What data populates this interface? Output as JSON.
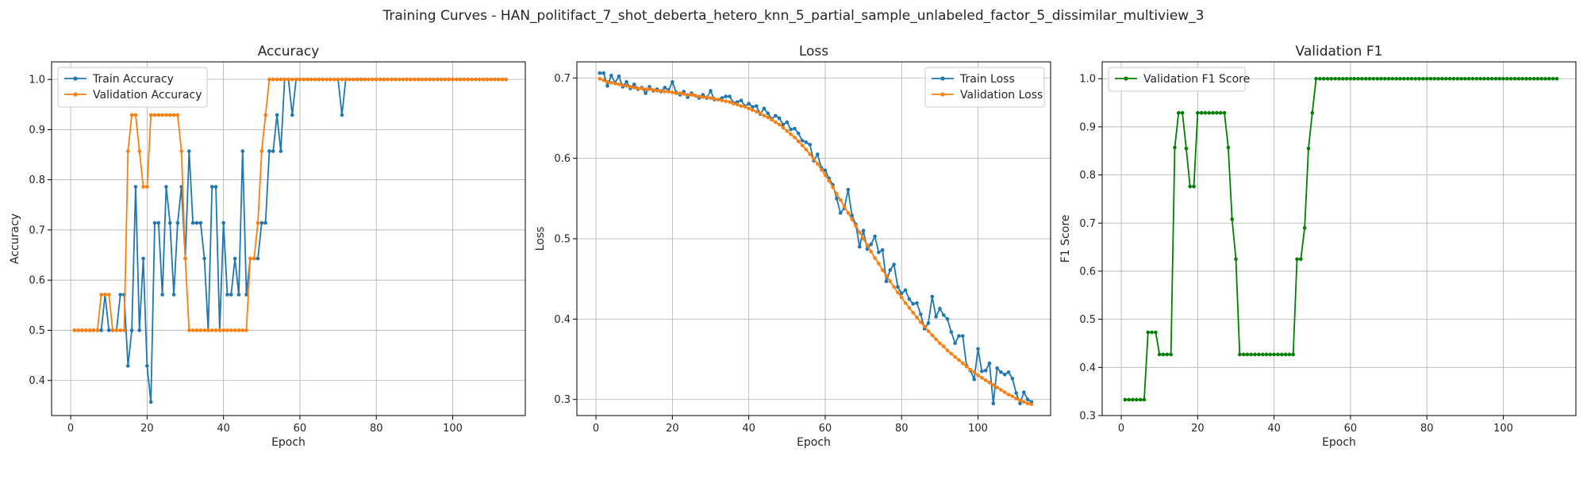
{
  "figure": {
    "suptitle": "Training Curves - HAN_politifact_7_shot_deberta_hetero_knn_5_partial_sample_unlabeled_factor_5_dissimilar_multiview_3"
  },
  "colors": {
    "blue": "#1f77b4",
    "orange": "#ff7f0e",
    "green": "#008000"
  },
  "chart_data": [
    {
      "type": "line",
      "title": "Accuracy",
      "xlabel": "Epoch",
      "ylabel": "Accuracy",
      "xlim": [
        -5,
        119
      ],
      "ylim": [
        0.33,
        1.035
      ],
      "xticks": [
        0,
        20,
        40,
        60,
        80,
        100
      ],
      "yticks": [
        0.4,
        0.5,
        0.6,
        0.7,
        0.8,
        0.9,
        1.0
      ],
      "ytick_labels": [
        "0.4",
        "0.5",
        "0.6",
        "0.7",
        "0.8",
        "0.9",
        "1.0"
      ],
      "grid": true,
      "legend": "top-left",
      "x_start": 1,
      "series": [
        {
          "name": "Train Accuracy",
          "color": "#1f77b4",
          "values": [
            0.5,
            0.5,
            0.5,
            0.5,
            0.5,
            0.5,
            0.5,
            0.5,
            0.571,
            0.5,
            0.5,
            0.5,
            0.571,
            0.571,
            0.429,
            0.5,
            0.786,
            0.5,
            0.643,
            0.429,
            0.357,
            0.714,
            0.714,
            0.571,
            0.786,
            0.714,
            0.571,
            0.714,
            0.786,
            0.643,
            0.857,
            0.714,
            0.714,
            0.714,
            0.643,
            0.5,
            0.786,
            0.786,
            0.5,
            0.714,
            0.571,
            0.571,
            0.643,
            0.571,
            0.857,
            0.571,
            0.643,
            0.643,
            0.643,
            0.714,
            0.714,
            0.857,
            0.857,
            0.929,
            0.857,
            1.0,
            1.0,
            0.929,
            1.0,
            1.0,
            1.0,
            1.0,
            1.0,
            1.0,
            1.0,
            1.0,
            1.0,
            1.0,
            1.0,
            1.0,
            0.929,
            1.0,
            1.0,
            1.0,
            1.0,
            1.0,
            1.0,
            1.0,
            1.0,
            1.0,
            1.0,
            1.0,
            1.0,
            1.0,
            1.0,
            1.0,
            1.0,
            1.0,
            1.0,
            1.0,
            1.0,
            1.0,
            1.0,
            1.0,
            1.0,
            1.0,
            1.0,
            1.0,
            1.0,
            1.0,
            1.0,
            1.0,
            1.0,
            1.0,
            1.0,
            1.0,
            1.0,
            1.0,
            1.0,
            1.0,
            1.0,
            1.0,
            1.0,
            1.0
          ]
        },
        {
          "name": "Validation Accuracy",
          "color": "#ff7f0e",
          "values": [
            0.5,
            0.5,
            0.5,
            0.5,
            0.5,
            0.5,
            0.5,
            0.571,
            0.571,
            0.571,
            0.5,
            0.5,
            0.5,
            0.5,
            0.857,
            0.929,
            0.929,
            0.857,
            0.786,
            0.786,
            0.929,
            0.929,
            0.929,
            0.929,
            0.929,
            0.929,
            0.929,
            0.929,
            0.857,
            0.643,
            0.5,
            0.5,
            0.5,
            0.5,
            0.5,
            0.5,
            0.5,
            0.5,
            0.5,
            0.5,
            0.5,
            0.5,
            0.5,
            0.5,
            0.5,
            0.5,
            0.643,
            0.643,
            0.714,
            0.857,
            0.929,
            1.0,
            1.0,
            1.0,
            1.0,
            1.0,
            1.0,
            1.0,
            1.0,
            1.0,
            1.0,
            1.0,
            1.0,
            1.0,
            1.0,
            1.0,
            1.0,
            1.0,
            1.0,
            1.0,
            1.0,
            1.0,
            1.0,
            1.0,
            1.0,
            1.0,
            1.0,
            1.0,
            1.0,
            1.0,
            1.0,
            1.0,
            1.0,
            1.0,
            1.0,
            1.0,
            1.0,
            1.0,
            1.0,
            1.0,
            1.0,
            1.0,
            1.0,
            1.0,
            1.0,
            1.0,
            1.0,
            1.0,
            1.0,
            1.0,
            1.0,
            1.0,
            1.0,
            1.0,
            1.0,
            1.0,
            1.0,
            1.0,
            1.0,
            1.0,
            1.0,
            1.0,
            1.0,
            1.0
          ]
        }
      ]
    },
    {
      "type": "line",
      "title": "Loss",
      "xlabel": "Epoch",
      "ylabel": "Loss",
      "xlim": [
        -5,
        119
      ],
      "ylim": [
        0.28,
        0.72
      ],
      "xticks": [
        0,
        20,
        40,
        60,
        80,
        100
      ],
      "yticks": [
        0.3,
        0.4,
        0.5,
        0.6,
        0.7
      ],
      "ytick_labels": [
        "0.3",
        "0.4",
        "0.5",
        "0.6",
        "0.7"
      ],
      "grid": true,
      "legend": "top-right",
      "x_start": 1,
      "series": [
        {
          "name": "Train Loss",
          "color": "#1f77b4",
          "values": [
            0.706,
            0.706,
            0.69,
            0.703,
            0.694,
            0.702,
            0.689,
            0.695,
            0.687,
            0.692,
            0.686,
            0.688,
            0.681,
            0.689,
            0.684,
            0.686,
            0.683,
            0.688,
            0.685,
            0.695,
            0.682,
            0.679,
            0.683,
            0.676,
            0.681,
            0.678,
            0.675,
            0.679,
            0.675,
            0.684,
            0.673,
            0.673,
            0.675,
            0.677,
            0.677,
            0.669,
            0.67,
            0.672,
            0.665,
            0.668,
            0.664,
            0.665,
            0.655,
            0.662,
            0.656,
            0.649,
            0.653,
            0.65,
            0.642,
            0.645,
            0.636,
            0.637,
            0.631,
            0.622,
            0.62,
            0.617,
            0.597,
            0.605,
            0.588,
            0.585,
            0.575,
            0.567,
            0.55,
            0.532,
            0.538,
            0.561,
            0.529,
            0.518,
            0.49,
            0.51,
            0.487,
            0.493,
            0.503,
            0.483,
            0.486,
            0.447,
            0.461,
            0.468,
            0.44,
            0.432,
            0.436,
            0.425,
            0.419,
            0.42,
            0.406,
            0.388,
            0.395,
            0.428,
            0.403,
            0.413,
            0.405,
            0.4,
            0.384,
            0.37,
            0.379,
            0.379,
            0.342,
            0.336,
            0.325,
            0.363,
            0.335,
            0.336,
            0.345,
            0.295,
            0.339,
            0.334,
            0.331,
            0.334,
            0.326,
            0.308,
            0.295,
            0.309,
            0.3,
            0.297
          ]
        },
        {
          "name": "Validation Loss",
          "color": "#ff7f0e",
          "values": [
            0.699,
            0.697,
            0.695,
            0.694,
            0.693,
            0.692,
            0.691,
            0.69,
            0.689,
            0.688,
            0.687,
            0.687,
            0.686,
            0.686,
            0.685,
            0.684,
            0.684,
            0.683,
            0.683,
            0.682,
            0.681,
            0.681,
            0.68,
            0.679,
            0.679,
            0.678,
            0.677,
            0.676,
            0.676,
            0.675,
            0.674,
            0.673,
            0.672,
            0.671,
            0.67,
            0.668,
            0.667,
            0.665,
            0.664,
            0.662,
            0.66,
            0.658,
            0.656,
            0.653,
            0.651,
            0.648,
            0.645,
            0.642,
            0.638,
            0.634,
            0.63,
            0.626,
            0.621,
            0.616,
            0.611,
            0.605,
            0.599,
            0.593,
            0.586,
            0.579,
            0.572,
            0.564,
            0.556,
            0.548,
            0.54,
            0.532,
            0.524,
            0.516,
            0.508,
            0.5,
            0.492,
            0.484,
            0.476,
            0.469,
            0.461,
            0.454,
            0.447,
            0.44,
            0.433,
            0.427,
            0.42,
            0.414,
            0.408,
            0.402,
            0.396,
            0.391,
            0.385,
            0.38,
            0.375,
            0.37,
            0.366,
            0.361,
            0.357,
            0.353,
            0.349,
            0.345,
            0.341,
            0.337,
            0.334,
            0.33,
            0.327,
            0.324,
            0.321,
            0.318,
            0.315,
            0.312,
            0.309,
            0.306,
            0.304,
            0.301,
            0.299,
            0.297,
            0.295,
            0.294
          ]
        }
      ]
    },
    {
      "type": "line",
      "title": "Validation F1",
      "xlabel": "Epoch",
      "ylabel": "F1 Score",
      "xlim": [
        -5,
        119
      ],
      "ylim": [
        0.3,
        1.035
      ],
      "xticks": [
        0,
        20,
        40,
        60,
        80,
        100
      ],
      "yticks": [
        0.3,
        0.4,
        0.5,
        0.6,
        0.7,
        0.8,
        0.9,
        1.0
      ],
      "ytick_labels": [
        "0.3",
        "0.4",
        "0.5",
        "0.6",
        "0.7",
        "0.8",
        "0.9",
        "1.0"
      ],
      "grid": true,
      "legend": "top-left",
      "x_start": 1,
      "series": [
        {
          "name": "Validation F1 Score",
          "color": "#008000",
          "values": [
            0.333,
            0.333,
            0.333,
            0.333,
            0.333,
            0.333,
            0.473,
            0.473,
            0.473,
            0.427,
            0.427,
            0.427,
            0.427,
            0.857,
            0.929,
            0.929,
            0.855,
            0.776,
            0.776,
            0.929,
            0.929,
            0.929,
            0.929,
            0.929,
            0.929,
            0.929,
            0.929,
            0.857,
            0.708,
            0.625,
            0.427,
            0.427,
            0.427,
            0.427,
            0.427,
            0.427,
            0.427,
            0.427,
            0.427,
            0.427,
            0.427,
            0.427,
            0.427,
            0.427,
            0.427,
            0.625,
            0.625,
            0.69,
            0.855,
            0.929,
            1.0,
            1.0,
            1.0,
            1.0,
            1.0,
            1.0,
            1.0,
            1.0,
            1.0,
            1.0,
            1.0,
            1.0,
            1.0,
            1.0,
            1.0,
            1.0,
            1.0,
            1.0,
            1.0,
            1.0,
            1.0,
            1.0,
            1.0,
            1.0,
            1.0,
            1.0,
            1.0,
            1.0,
            1.0,
            1.0,
            1.0,
            1.0,
            1.0,
            1.0,
            1.0,
            1.0,
            1.0,
            1.0,
            1.0,
            1.0,
            1.0,
            1.0,
            1.0,
            1.0,
            1.0,
            1.0,
            1.0,
            1.0,
            1.0,
            1.0,
            1.0,
            1.0,
            1.0,
            1.0,
            1.0,
            1.0,
            1.0,
            1.0,
            1.0,
            1.0,
            1.0,
            1.0,
            1.0,
            1.0
          ]
        }
      ]
    }
  ]
}
